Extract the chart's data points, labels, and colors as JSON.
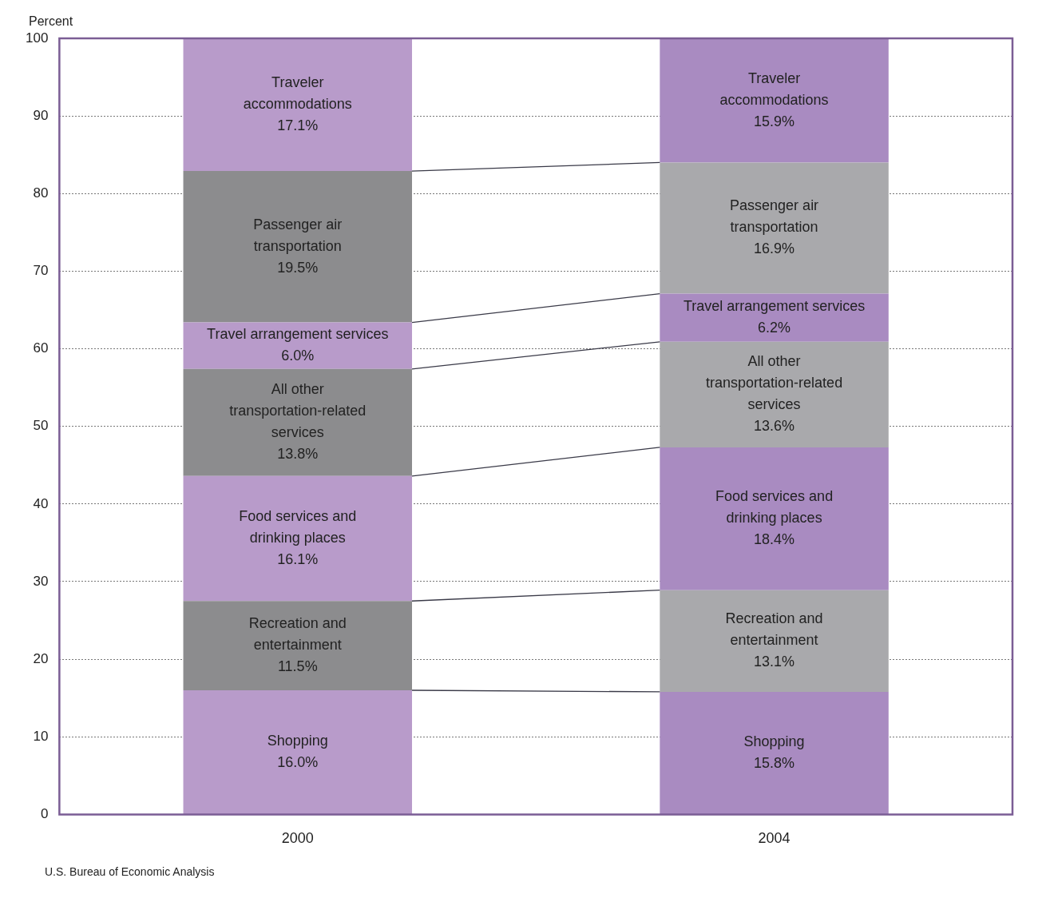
{
  "chart_data": {
    "type": "bar",
    "stacked": true,
    "ylabel": "Percent",
    "categories": [
      "2000",
      "2004"
    ],
    "ylim": [
      0,
      100
    ],
    "yticks": [
      0,
      10,
      20,
      30,
      40,
      50,
      60,
      70,
      80,
      90,
      100
    ],
    "grid": "y",
    "legend": false,
    "series": [
      {
        "name": "Shopping",
        "colors": [
          "#b89bca",
          "#a98bc1"
        ],
        "values": [
          16.0,
          15.8
        ],
        "value_labels": [
          "16.0%",
          "15.8%"
        ]
      },
      {
        "name": "Recreation and entertainment",
        "colors": [
          "#8c8c8e",
          "#a9a9ac"
        ],
        "values": [
          11.5,
          13.1
        ],
        "value_labels": [
          "11.5%",
          "13.1%"
        ]
      },
      {
        "name": "Food services and drinking places",
        "colors": [
          "#b89bca",
          "#a98bc1"
        ],
        "values": [
          16.1,
          18.4
        ],
        "value_labels": [
          "16.1%",
          "18.4%"
        ]
      },
      {
        "name": "All other transportation-related services",
        "colors": [
          "#8c8c8e",
          "#a9a9ac"
        ],
        "values": [
          13.8,
          13.6
        ],
        "value_labels": [
          "13.8%",
          "13.6%"
        ]
      },
      {
        "name": "Travel arrangement services",
        "colors": [
          "#b89bca",
          "#a98bc1"
        ],
        "values": [
          6.0,
          6.2
        ],
        "value_labels": [
          "6.0%",
          "6.2%"
        ]
      },
      {
        "name": "Passenger air transportation",
        "colors": [
          "#8c8c8e",
          "#a9a9ac"
        ],
        "values": [
          19.5,
          16.9
        ],
        "value_labels": [
          "19.5%",
          "16.9%"
        ]
      },
      {
        "name": "Traveler accommodations",
        "colors": [
          "#b89bca",
          "#a98bc1"
        ],
        "values": [
          17.1,
          15.9
        ],
        "value_labels": [
          "17.1%",
          "15.9%"
        ]
      }
    ],
    "annotations": [
      "U.S. Bureau of Economic Analysis"
    ]
  }
}
